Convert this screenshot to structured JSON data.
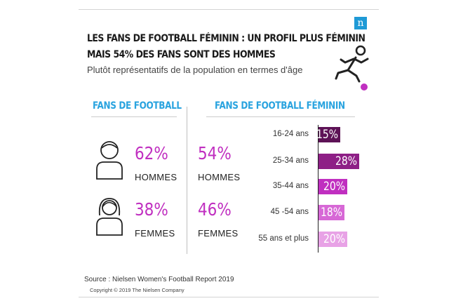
{
  "logo_text": "n",
  "title_line1": "LES FANS DE FOOTBALL FÉMININ : UN PROFIL PLUS FÉMININ",
  "title_line2": "MAIS 54% DES FANS SONT DES HOMMES",
  "subtitle": "Plutôt représentatifs de la population en termes d'âge",
  "left": {
    "header": "FANS DE FOOTBALL",
    "men": {
      "pct": "62%",
      "label": "HOMMES"
    },
    "women": {
      "pct": "38%",
      "label": "FEMMES"
    }
  },
  "right": {
    "header": "FANS DE FOOTBALL FÉMININ",
    "men": {
      "pct": "54%",
      "label": "HOMMES"
    },
    "women": {
      "pct": "46%",
      "label": "FEMMES"
    }
  },
  "colors": {
    "accent_blue": "#29a3df",
    "pct_magenta": "#c02fc0",
    "bar_shades": [
      "#5d1256",
      "#8e1f86",
      "#c02fc0",
      "#d768d6",
      "#e8a2e6"
    ]
  },
  "chart_data": {
    "type": "bar",
    "orientation": "horizontal",
    "categories": [
      "16-24 ans",
      "25-34 ans",
      "35-44 ans",
      "45 -54 ans",
      "55 ans et plus"
    ],
    "values": [
      15,
      28,
      20,
      18,
      20
    ],
    "value_labels": [
      "15%",
      "28%",
      "20%",
      "18%",
      "20%"
    ],
    "xlim": [
      0,
      28
    ]
  },
  "source": "Source : Nielsen Women's Football Report 2019",
  "copyright": "Copyright © 2019 The Nielsen Company"
}
